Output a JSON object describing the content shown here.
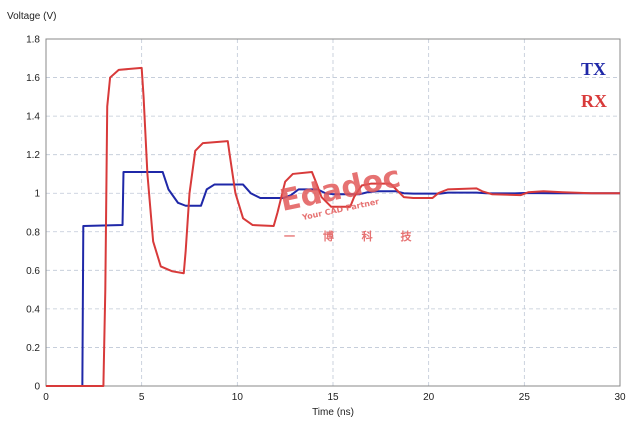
{
  "chart_data": {
    "type": "line",
    "ylabel": "Voltage (V)",
    "xlabel": "Time (ns)",
    "xlim": [
      0,
      30
    ],
    "ylim": [
      0,
      1.8
    ],
    "x_ticks": [
      0,
      5,
      10,
      15,
      20,
      25,
      30
    ],
    "y_ticks": [
      0,
      0.2,
      0.4,
      0.6,
      0.8,
      1,
      1.2,
      1.4,
      1.6,
      1.8
    ],
    "x_tick_labels": [
      "0",
      "5",
      "10",
      "15",
      "20",
      "25",
      "30"
    ],
    "y_tick_labels": [
      "0",
      "0.2",
      "0.4",
      "0.6",
      "0.8",
      "1",
      "1.2",
      "1.4",
      "1.6",
      "1.8"
    ],
    "grid": true,
    "legend": "top-right",
    "series": [
      {
        "name": "TX",
        "color": "#1f28a8",
        "points": [
          [
            0,
            0
          ],
          [
            1.9,
            0
          ],
          [
            1.95,
            0.83
          ],
          [
            4,
            0.835
          ],
          [
            4.05,
            1.11
          ],
          [
            6.1,
            1.11
          ],
          [
            6.4,
            1.02
          ],
          [
            6.9,
            0.95
          ],
          [
            7.3,
            0.935
          ],
          [
            8.1,
            0.935
          ],
          [
            8.4,
            1.02
          ],
          [
            8.8,
            1.045
          ],
          [
            10.3,
            1.045
          ],
          [
            10.7,
            1.0
          ],
          [
            11.2,
            0.975
          ],
          [
            12.4,
            0.975
          ],
          [
            12.8,
            0.99
          ],
          [
            13.2,
            1.02
          ],
          [
            14.2,
            1.02
          ],
          [
            14.6,
            1.0
          ],
          [
            15.0,
            0.995
          ],
          [
            16.4,
            0.995
          ],
          [
            16.8,
            1.005
          ],
          [
            17.3,
            1.01
          ],
          [
            18.3,
            1.01
          ],
          [
            18.7,
            1.0
          ],
          [
            19.2,
            0.998
          ],
          [
            20.6,
            0.998
          ],
          [
            21.0,
            1.003
          ],
          [
            22.5,
            1.003
          ],
          [
            23.0,
            1.0
          ],
          [
            24.5,
            0.999
          ],
          [
            25,
            1.001
          ],
          [
            26.5,
            1.0
          ],
          [
            30,
            1.0
          ]
        ]
      },
      {
        "name": "RX",
        "color": "#d83a3a",
        "points": [
          [
            0,
            0
          ],
          [
            3.0,
            0
          ],
          [
            3.1,
            0.5
          ],
          [
            3.2,
            1.45
          ],
          [
            3.35,
            1.6
          ],
          [
            3.8,
            1.64
          ],
          [
            5.0,
            1.65
          ],
          [
            5.1,
            1.5
          ],
          [
            5.3,
            1.1
          ],
          [
            5.6,
            0.75
          ],
          [
            6.0,
            0.62
          ],
          [
            6.6,
            0.595
          ],
          [
            7.2,
            0.585
          ],
          [
            7.3,
            0.7
          ],
          [
            7.5,
            1.0
          ],
          [
            7.8,
            1.22
          ],
          [
            8.2,
            1.26
          ],
          [
            9.5,
            1.27
          ],
          [
            9.6,
            1.2
          ],
          [
            9.9,
            1.0
          ],
          [
            10.3,
            0.87
          ],
          [
            10.8,
            0.835
          ],
          [
            11.9,
            0.83
          ],
          [
            12.1,
            0.9
          ],
          [
            12.5,
            1.06
          ],
          [
            12.9,
            1.1
          ],
          [
            13.9,
            1.11
          ],
          [
            14.1,
            1.06
          ],
          [
            14.4,
            0.98
          ],
          [
            14.9,
            0.93
          ],
          [
            15.9,
            0.93
          ],
          [
            16.1,
            0.98
          ],
          [
            16.5,
            1.04
          ],
          [
            17.0,
            1.05
          ],
          [
            18.0,
            1.05
          ],
          [
            18.3,
            1.02
          ],
          [
            18.7,
            0.98
          ],
          [
            19.2,
            0.975
          ],
          [
            20.2,
            0.975
          ],
          [
            20.5,
            1.0
          ],
          [
            21.0,
            1.02
          ],
          [
            22.5,
            1.025
          ],
          [
            22.8,
            1.01
          ],
          [
            23.3,
            0.995
          ],
          [
            24.8,
            0.99
          ],
          [
            25.2,
            1.005
          ],
          [
            26.0,
            1.01
          ],
          [
            27.0,
            1.005
          ],
          [
            28.5,
            1.0
          ],
          [
            30,
            1.0
          ]
        ]
      }
    ]
  },
  "legend": {
    "tx_label": "TX",
    "rx_label": "RX"
  },
  "watermark": {
    "brand": "Edadoc",
    "tagline": "Your CAD Partner",
    "chinese": "一 博 科 技"
  },
  "colors": {
    "tx": "#1f28a8",
    "rx": "#d83a3a",
    "grid": "#bfc8d6",
    "watermark": "#e25a5a"
  }
}
